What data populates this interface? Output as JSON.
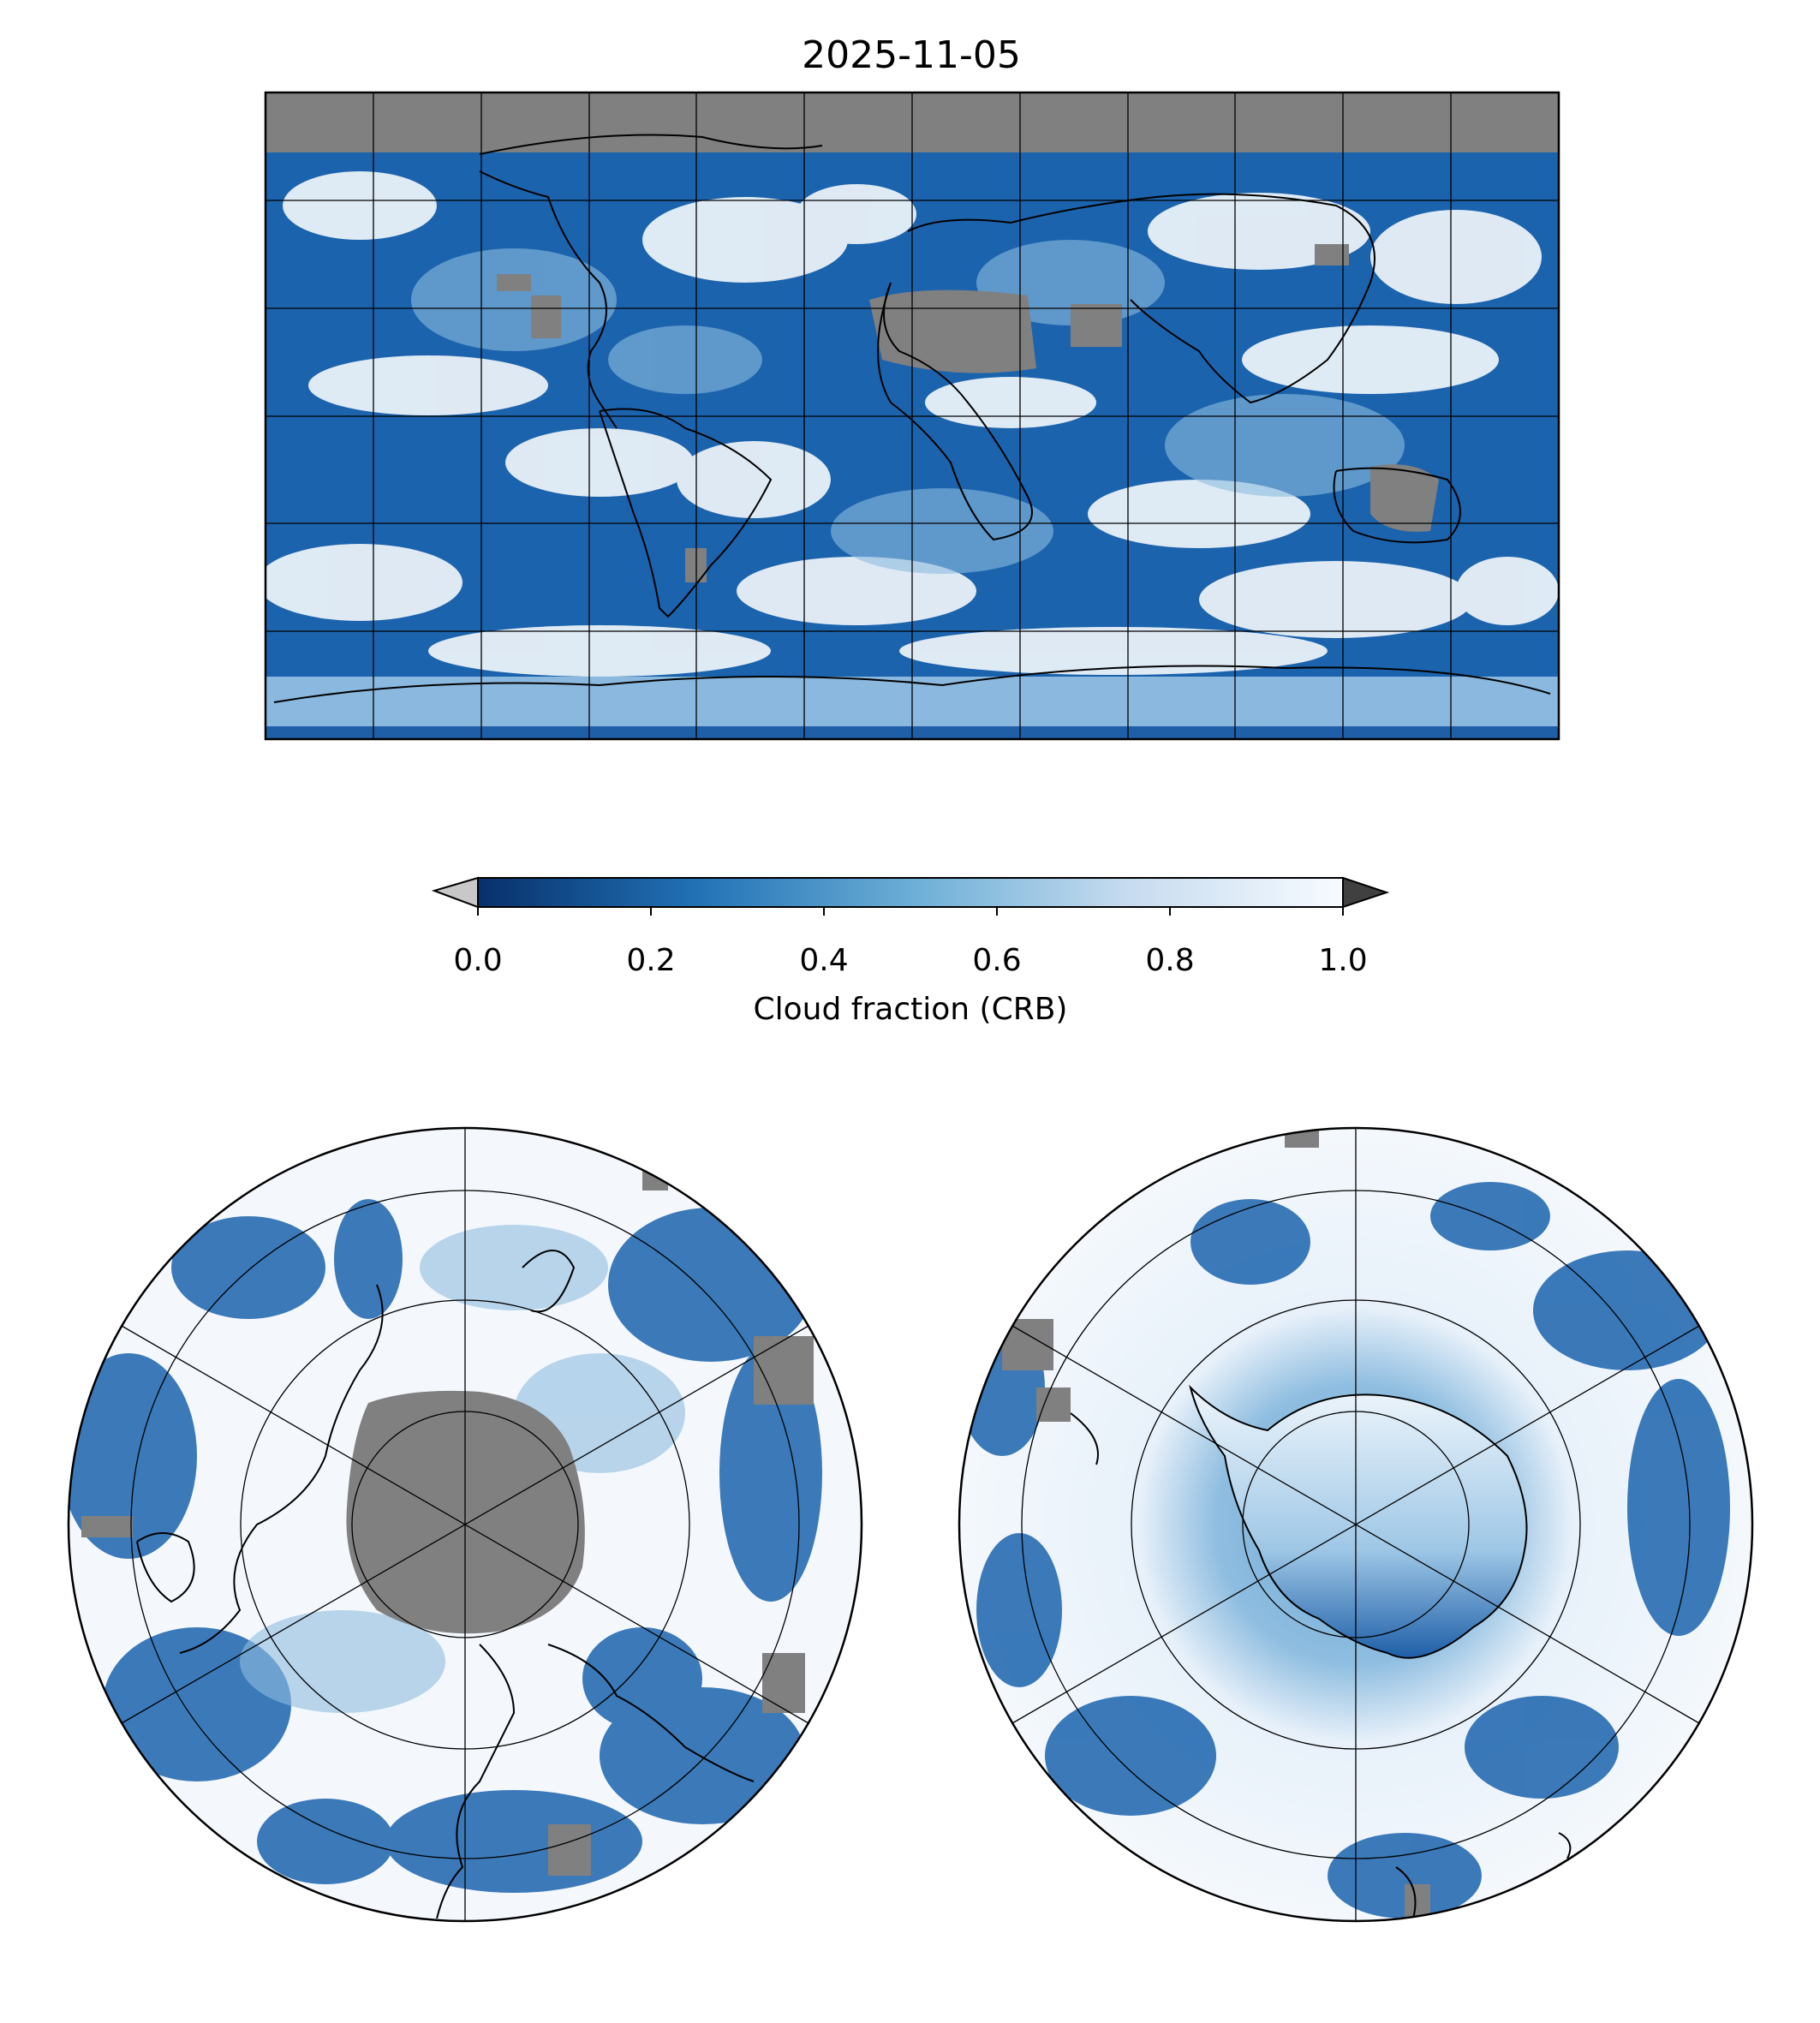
{
  "figure": {
    "title": "2025-11-05"
  },
  "colorbar": {
    "label": "Cloud fraction (CRB)",
    "ticks": [
      "0.0",
      "0.2",
      "0.4",
      "0.6",
      "0.8",
      "1.0"
    ],
    "range": [
      0.0,
      1.0
    ],
    "colormap": "Blues_r",
    "under_color": "#c8c8c8",
    "over_color": "#404040",
    "stops": [
      "#08306b",
      "#2171b5",
      "#6baed6",
      "#c6dbef",
      "#f7fbff"
    ]
  },
  "map_colors": {
    "ocean_cloud_dark": "#0b4a94",
    "cloud_mid": "#4a90c8",
    "cloud_white": "#f4f8fc",
    "missing_data": "#808080",
    "coastline": "#000000"
  },
  "panels": [
    {
      "id": "global",
      "projection": "plate-carree",
      "gridlines": "every 30 degrees"
    },
    {
      "id": "north-polar",
      "projection": "north-polar-stereographic"
    },
    {
      "id": "south-polar",
      "projection": "south-polar-stereographic"
    }
  ]
}
